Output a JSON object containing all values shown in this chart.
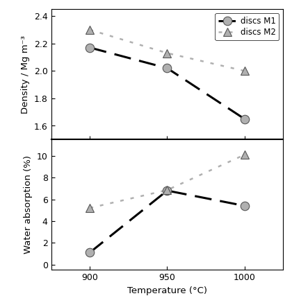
{
  "temperature": [
    900,
    950,
    1000
  ],
  "density_M1": [
    2.17,
    2.02,
    1.65
  ],
  "density_M2": [
    2.3,
    2.13,
    2.0
  ],
  "water_M1": [
    1.1,
    6.8,
    5.4
  ],
  "water_M2": [
    5.2,
    6.85,
    10.1
  ],
  "density_ylim": [
    1.5,
    2.45
  ],
  "density_yticks": [
    1.6,
    1.8,
    2.0,
    2.2,
    2.4
  ],
  "water_ylim": [
    -0.5,
    11.5
  ],
  "water_yticks": [
    0,
    2,
    4,
    6,
    8,
    10
  ],
  "xlabel": "Temperature (°C)",
  "ylabel_top": "Density / Mg m⁻³",
  "ylabel_bottom": "Water absorption (%)",
  "xticks": [
    900,
    950,
    1000
  ],
  "legend_labels": [
    "discs M1",
    "discs M2"
  ],
  "marker_color": "#b0b0b0",
  "marker_edge_color": "#555555",
  "line_color_M1": "#000000",
  "line_color_M2": "#b0b0b0",
  "marker_size": 9,
  "linewidth_M1": 2.2,
  "linewidth_M2": 1.8,
  "background_color": "#ffffff",
  "dash_M1": [
    8,
    4
  ],
  "dot_M2": [
    2,
    4
  ]
}
